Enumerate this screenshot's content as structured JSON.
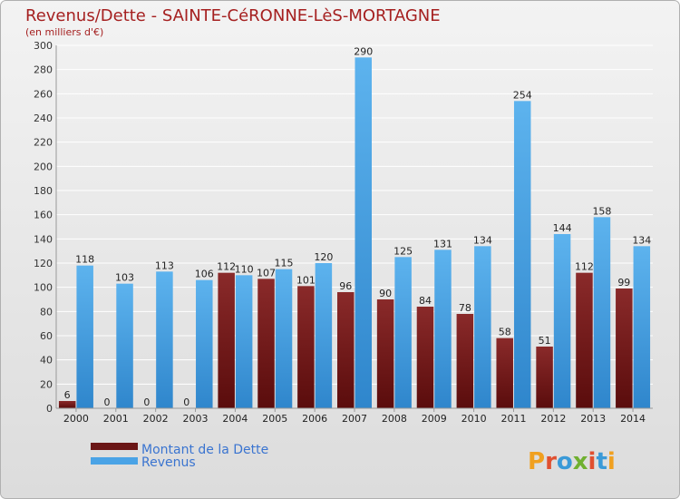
{
  "chart_data": {
    "type": "bar",
    "title": "Revenus/Dette - SAINTE-CéRONNE-LèS-MORTAGNE",
    "subtitle": "(en milliers d'€)",
    "categories": [
      "2000",
      "2001",
      "2002",
      "2003",
      "2004",
      "2005",
      "2006",
      "2007",
      "2008",
      "2009",
      "2010",
      "2011",
      "2012",
      "2013",
      "2014"
    ],
    "series": [
      {
        "name": "Montant de la Dette",
        "color": "#7a1a1a",
        "values": [
          6,
          0,
          0,
          0,
          112,
          107,
          101,
          96,
          90,
          84,
          78,
          58,
          51,
          112,
          99
        ]
      },
      {
        "name": "Revenus",
        "color": "#4aa3e6",
        "values": [
          118,
          103,
          113,
          106,
          110,
          115,
          120,
          290,
          125,
          131,
          134,
          254,
          144,
          158,
          134
        ]
      }
    ],
    "yticks": [
      0,
      20,
      40,
      60,
      80,
      100,
      120,
      140,
      160,
      180,
      200,
      220,
      240,
      260,
      280,
      300
    ],
    "ylim": [
      0,
      300
    ],
    "grid": true,
    "legend_position": "bottom-left",
    "background_color": "#e6e6e6",
    "title_color": "#a52020"
  },
  "logo_text": "Proxiti"
}
